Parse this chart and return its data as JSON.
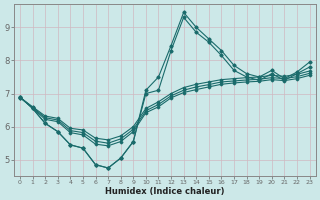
{
  "xlabel": "Humidex (Indice chaleur)",
  "bg_color": "#cce8e8",
  "grid_color": "#c0d8d8",
  "line_color": "#1a6b6b",
  "xlim": [
    -0.5,
    23.5
  ],
  "ylim": [
    4.5,
    9.7
  ],
  "xticks": [
    0,
    1,
    2,
    3,
    4,
    5,
    6,
    7,
    8,
    9,
    10,
    11,
    12,
    13,
    14,
    15,
    16,
    17,
    18,
    19,
    20,
    21,
    22,
    23
  ],
  "yticks": [
    5,
    6,
    7,
    8,
    9
  ],
  "series": {
    "jagged_high": [
      6.9,
      6.55,
      6.1,
      5.85,
      5.45,
      5.35,
      4.85,
      4.75,
      5.05,
      5.55,
      7.1,
      7.5,
      8.45,
      9.45,
      9.0,
      8.65,
      8.3,
      7.85,
      7.6,
      7.5,
      7.7,
      7.45,
      7.65,
      7.95
    ],
    "jagged_low": [
      6.9,
      6.55,
      6.1,
      5.85,
      5.45,
      5.35,
      4.85,
      4.75,
      5.05,
      5.55,
      7.0,
      7.1,
      8.3,
      9.3,
      8.85,
      8.55,
      8.15,
      7.7,
      7.5,
      7.4,
      7.6,
      7.4,
      7.6,
      7.8
    ],
    "trend_high": [
      6.88,
      6.6,
      6.32,
      6.25,
      5.95,
      5.9,
      5.65,
      5.6,
      5.72,
      6.0,
      6.55,
      6.75,
      7.0,
      7.18,
      7.28,
      7.35,
      7.42,
      7.45,
      7.48,
      7.5,
      7.55,
      7.52,
      7.58,
      7.68
    ],
    "trend_mid": [
      6.88,
      6.58,
      6.27,
      6.2,
      5.88,
      5.82,
      5.56,
      5.5,
      5.63,
      5.92,
      6.48,
      6.67,
      6.93,
      7.1,
      7.2,
      7.27,
      7.35,
      7.38,
      7.41,
      7.43,
      7.48,
      7.45,
      7.51,
      7.61
    ],
    "trend_low": [
      6.88,
      6.56,
      6.22,
      6.15,
      5.82,
      5.75,
      5.47,
      5.42,
      5.55,
      5.85,
      6.42,
      6.6,
      6.87,
      7.03,
      7.12,
      7.2,
      7.28,
      7.32,
      7.35,
      7.37,
      7.42,
      7.39,
      7.45,
      7.55
    ]
  }
}
